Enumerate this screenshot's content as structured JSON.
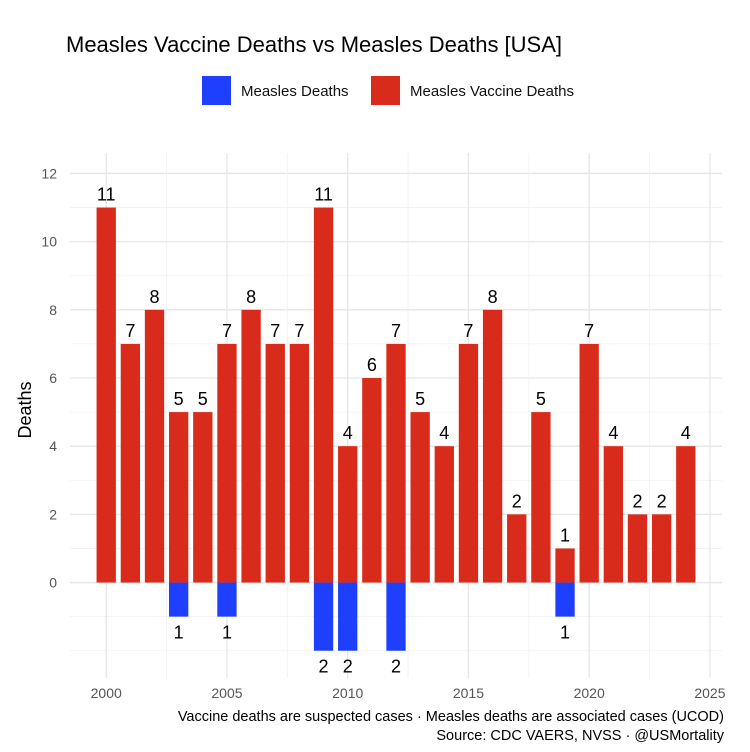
{
  "chart_data": {
    "type": "bar",
    "title": "Measles Vaccine Deaths vs Measles Deaths [USA]",
    "ylabel": "Deaths",
    "xlabel": "",
    "legend": {
      "placement": "top"
    },
    "grid": true,
    "x": [
      2000,
      2001,
      2002,
      2003,
      2004,
      2005,
      2006,
      2007,
      2008,
      2009,
      2010,
      2011,
      2012,
      2013,
      2014,
      2015,
      2016,
      2017,
      2018,
      2019,
      2020,
      2021,
      2022,
      2023,
      2024
    ],
    "series": [
      {
        "name": "Measles Deaths",
        "color": "#1f3fff",
        "direction": "down",
        "values": [
          0,
          0,
          0,
          1,
          0,
          1,
          0,
          0,
          0,
          2,
          2,
          0,
          2,
          0,
          0,
          0,
          0,
          0,
          0,
          1,
          0,
          0,
          0,
          0,
          0
        ]
      },
      {
        "name": "Measles Vaccine Deaths",
        "color": "#d92b1b",
        "direction": "up",
        "values": [
          11,
          7,
          8,
          5,
          5,
          7,
          8,
          7,
          7,
          11,
          4,
          6,
          7,
          5,
          4,
          7,
          8,
          2,
          5,
          1,
          7,
          4,
          2,
          2,
          4
        ]
      }
    ],
    "x_ticks": [
      2000,
      2005,
      2010,
      2015,
      2020,
      2025
    ],
    "y_ticks": [
      0,
      2,
      4,
      6,
      8,
      10,
      12
    ],
    "xlim": [
      1998.5,
      2025.5
    ],
    "ylim": [
      -2.8,
      12.6
    ],
    "caption": [
      "Vaccine deaths are suspected cases · Measles deaths are associated cases (UCOD)",
      "Source: CDC VAERS, NVSS · @USMortality"
    ]
  }
}
